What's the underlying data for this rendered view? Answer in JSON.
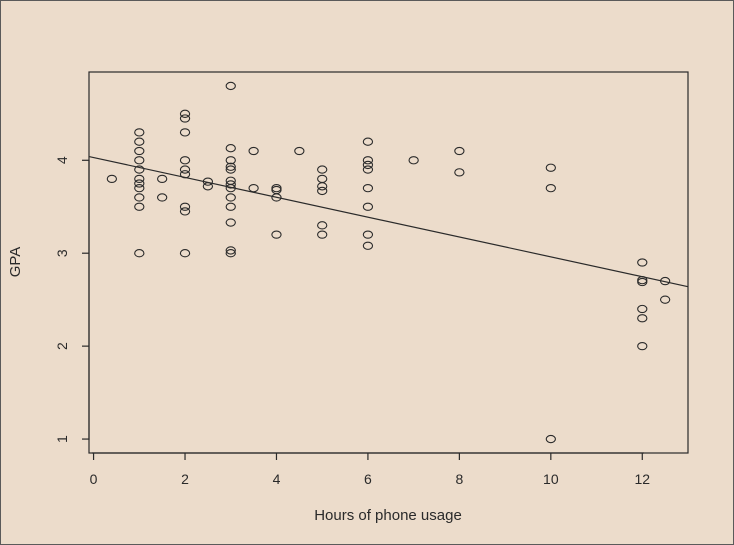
{
  "chart_data": {
    "type": "scatter",
    "title": "",
    "xlabel": "Hours of phone usage",
    "ylabel": "GPA",
    "xlim": [
      -0.1,
      13
    ],
    "ylim": [
      0.85,
      4.95
    ],
    "xticks": [
      0,
      2,
      4,
      6,
      8,
      10,
      12
    ],
    "yticks": [
      1,
      2,
      3,
      4
    ],
    "grid": false,
    "legend": "none",
    "regression_line": {
      "x": [
        -0.1,
        13
      ],
      "y": [
        4.04,
        2.64
      ]
    },
    "series": [
      {
        "points": [
          [
            0.4,
            3.8
          ],
          [
            1,
            4.3
          ],
          [
            1,
            4.2
          ],
          [
            1,
            4.1
          ],
          [
            1,
            4.0
          ],
          [
            1,
            3.9
          ],
          [
            1,
            3.8
          ],
          [
            1,
            3.75
          ],
          [
            1,
            3.7
          ],
          [
            1,
            3.6
          ],
          [
            1,
            3.5
          ],
          [
            1,
            3.0
          ],
          [
            1.5,
            3.8
          ],
          [
            1.5,
            3.6
          ],
          [
            2,
            4.5
          ],
          [
            2,
            4.45
          ],
          [
            2,
            4.3
          ],
          [
            2,
            4.0
          ],
          [
            2,
            3.9
          ],
          [
            2,
            3.85
          ],
          [
            2,
            3.5
          ],
          [
            2,
            3.45
          ],
          [
            2,
            3.0
          ],
          [
            2.5,
            3.77
          ],
          [
            2.5,
            3.72
          ],
          [
            3,
            4.8
          ],
          [
            3,
            4.13
          ],
          [
            3,
            4.0
          ],
          [
            3,
            3.93
          ],
          [
            3,
            3.9
          ],
          [
            3,
            3.78
          ],
          [
            3,
            3.74
          ],
          [
            3,
            3.7
          ],
          [
            3,
            3.6
          ],
          [
            3,
            3.5
          ],
          [
            3,
            3.33
          ],
          [
            3,
            3.03
          ],
          [
            3,
            3.0
          ],
          [
            3.5,
            4.1
          ],
          [
            3.5,
            3.7
          ],
          [
            4,
            3.7
          ],
          [
            4,
            3.68
          ],
          [
            4,
            3.6
          ],
          [
            4,
            3.2
          ],
          [
            4.5,
            4.1
          ],
          [
            5,
            3.9
          ],
          [
            5,
            3.8
          ],
          [
            5,
            3.72
          ],
          [
            5,
            3.67
          ],
          [
            5,
            3.3
          ],
          [
            5,
            3.2
          ],
          [
            6,
            4.2
          ],
          [
            6,
            4.0
          ],
          [
            6,
            3.95
          ],
          [
            6,
            3.9
          ],
          [
            6,
            3.7
          ],
          [
            6,
            3.5
          ],
          [
            6,
            3.2
          ],
          [
            6,
            3.08
          ],
          [
            7,
            4.0
          ],
          [
            8,
            4.1
          ],
          [
            8,
            3.87
          ],
          [
            10,
            3.92
          ],
          [
            10,
            3.7
          ],
          [
            10,
            1.0
          ],
          [
            12,
            2.9
          ],
          [
            12,
            2.71
          ],
          [
            12,
            2.69
          ],
          [
            12,
            2.4
          ],
          [
            12,
            2.3
          ],
          [
            12,
            2.0
          ],
          [
            12.5,
            2.7
          ],
          [
            12.5,
            2.5
          ]
        ]
      }
    ]
  },
  "colors": {
    "background": "#ecdccb",
    "ink": "#2a2a2a"
  }
}
